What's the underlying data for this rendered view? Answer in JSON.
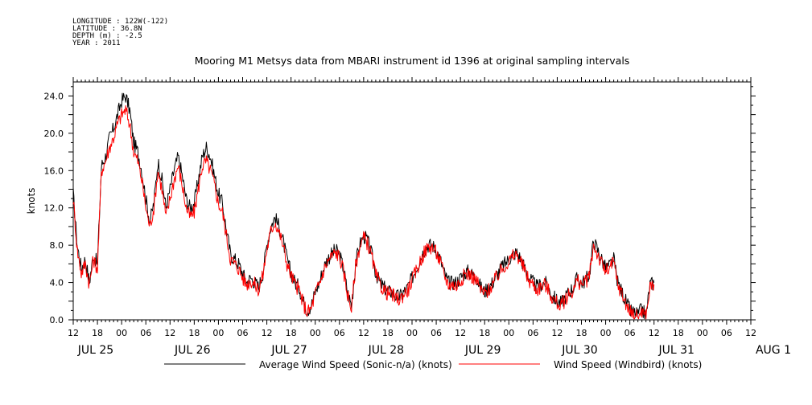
{
  "header": {
    "lines": [
      "LONGITUDE : 122W(-122)",
      "LATITUDE : 36.8N",
      "DEPTH (m) : -2.5",
      "YEAR : 2011"
    ]
  },
  "chart_data": {
    "type": "line",
    "title": "Mooring M1 Metsys data from MBARI instrument id 1396 at original sampling intervals",
    "ylabel": "knots",
    "xlabel": "",
    "ylim": [
      0,
      25.5
    ],
    "xlim_hours_from_first_tick": [
      0,
      168
    ],
    "yticks": [
      "0.0",
      "4.0",
      "8.0",
      "12.0",
      "16.0",
      "20.0",
      "24.0"
    ],
    "xtick_hours": [
      "12",
      "18",
      "00",
      "06",
      "12",
      "18",
      "00",
      "06",
      "12",
      "18",
      "00",
      "06",
      "12",
      "18",
      "00",
      "06",
      "12",
      "18",
      "00",
      "06",
      "12",
      "18",
      "00",
      "06",
      "12",
      "18",
      "00",
      "06",
      "12"
    ],
    "day_labels": [
      "JUL 25",
      "JUL 26",
      "JUL 27",
      "JUL 28",
      "JUL 29",
      "JUL 30",
      "JUL 31",
      "AUG 1"
    ],
    "legend_position": "bottom",
    "series": [
      {
        "name": "Average Wind Speed (Sonic-n/a) (knots)",
        "color": "#000000",
        "points": [
          [
            0,
            13.5
          ],
          [
            1,
            8
          ],
          [
            2,
            5.5
          ],
          [
            3,
            6.5
          ],
          [
            4,
            4
          ],
          [
            5,
            7
          ],
          [
            6,
            6
          ],
          [
            7,
            16.5
          ],
          [
            8,
            17.5
          ],
          [
            9,
            19.5
          ],
          [
            10,
            20.5
          ],
          [
            11,
            22
          ],
          [
            12,
            23.5
          ],
          [
            13,
            24
          ],
          [
            14,
            22.5
          ],
          [
            15,
            19
          ],
          [
            16,
            18
          ],
          [
            17,
            16
          ],
          [
            18,
            13
          ],
          [
            19,
            10.5
          ],
          [
            20,
            12.5
          ],
          [
            21,
            17
          ],
          [
            22,
            15
          ],
          [
            23,
            12
          ],
          [
            24,
            14
          ],
          [
            25,
            16
          ],
          [
            26,
            17.5
          ],
          [
            27,
            15.5
          ],
          [
            28,
            13
          ],
          [
            29,
            12
          ],
          [
            30,
            12.5
          ],
          [
            31,
            15
          ],
          [
            32,
            17.5
          ],
          [
            33,
            18.5
          ],
          [
            34,
            17.5
          ],
          [
            35,
            15.5
          ],
          [
            36,
            13.5
          ],
          [
            37,
            12.5
          ],
          [
            38,
            9.5
          ],
          [
            39,
            7
          ],
          [
            40,
            6.5
          ],
          [
            41,
            6
          ],
          [
            42,
            5
          ],
          [
            43,
            4
          ],
          [
            44,
            4.5
          ],
          [
            45,
            4
          ],
          [
            46,
            3.5
          ],
          [
            47,
            5
          ],
          [
            48,
            8
          ],
          [
            49,
            10
          ],
          [
            50,
            11
          ],
          [
            51,
            10
          ],
          [
            52,
            8.5
          ],
          [
            53,
            6.5
          ],
          [
            54,
            5
          ],
          [
            55,
            4
          ],
          [
            56,
            3.5
          ],
          [
            57,
            2
          ],
          [
            58,
            1
          ],
          [
            59,
            1.5
          ],
          [
            60,
            3
          ],
          [
            61,
            4
          ],
          [
            62,
            5.5
          ],
          [
            63,
            6.5
          ],
          [
            64,
            7
          ],
          [
            65,
            7.5
          ],
          [
            66,
            7
          ],
          [
            67,
            5.5
          ],
          [
            68,
            3
          ],
          [
            69,
            1.5
          ],
          [
            70,
            6
          ],
          [
            71,
            8
          ],
          [
            72,
            9
          ],
          [
            73,
            8.5
          ],
          [
            74,
            7
          ],
          [
            75,
            5
          ],
          [
            76,
            4
          ],
          [
            77,
            3.5
          ],
          [
            78,
            3
          ],
          [
            79,
            3
          ],
          [
            80,
            2.5
          ],
          [
            81,
            2.5
          ],
          [
            82,
            3
          ],
          [
            83,
            3.5
          ],
          [
            84,
            4.5
          ],
          [
            85,
            5.5
          ],
          [
            86,
            6.5
          ],
          [
            87,
            7.5
          ],
          [
            88,
            8
          ],
          [
            89,
            8
          ],
          [
            90,
            7.5
          ],
          [
            91,
            6.5
          ],
          [
            92,
            5
          ],
          [
            93,
            4
          ],
          [
            94,
            4
          ],
          [
            95,
            4
          ],
          [
            96,
            4.5
          ],
          [
            97,
            5
          ],
          [
            98,
            5.2
          ],
          [
            99,
            4.8
          ],
          [
            100,
            4.5
          ],
          [
            101,
            3.5
          ],
          [
            102,
            3
          ],
          [
            103,
            3.5
          ],
          [
            104,
            4
          ],
          [
            105,
            4.8
          ],
          [
            106,
            5.5
          ],
          [
            107,
            6
          ],
          [
            108,
            6.5
          ],
          [
            109,
            7
          ],
          [
            110,
            7.2
          ],
          [
            111,
            6.5
          ],
          [
            112,
            5.5
          ],
          [
            113,
            4.5
          ],
          [
            114,
            4
          ],
          [
            115,
            3.5
          ],
          [
            116,
            3.8
          ],
          [
            117,
            4
          ],
          [
            118,
            3.2
          ],
          [
            119,
            2.5
          ],
          [
            120,
            2
          ],
          [
            121,
            1.8
          ],
          [
            122,
            2.5
          ],
          [
            123,
            3
          ],
          [
            124,
            3.5
          ],
          [
            125,
            4.5
          ],
          [
            126,
            4
          ],
          [
            127,
            4.2
          ],
          [
            128,
            5
          ],
          [
            129,
            8.5
          ],
          [
            130,
            7.5
          ],
          [
            131,
            6.5
          ],
          [
            132,
            5.5
          ],
          [
            133,
            5.8
          ],
          [
            134,
            6.5
          ],
          [
            135,
            4
          ],
          [
            136,
            3
          ],
          [
            137,
            2
          ],
          [
            138,
            1
          ],
          [
            139,
            0.8
          ],
          [
            140,
            0.5
          ],
          [
            141,
            1.2
          ],
          [
            142,
            0.4
          ],
          [
            143,
            3.8
          ],
          [
            144,
            4
          ]
        ]
      },
      {
        "name": "Wind Speed (Windbird) (knots)",
        "color": "#ff0000",
        "points": [
          [
            0,
            13
          ],
          [
            1,
            7.5
          ],
          [
            2,
            5
          ],
          [
            3,
            6
          ],
          [
            4,
            3.8
          ],
          [
            5,
            6.5
          ],
          [
            6,
            5.5
          ],
          [
            7,
            16
          ],
          [
            8,
            17
          ],
          [
            9,
            18.5
          ],
          [
            10,
            19.5
          ],
          [
            11,
            21
          ],
          [
            12,
            22
          ],
          [
            13,
            22.5
          ],
          [
            14,
            21
          ],
          [
            15,
            18
          ],
          [
            16,
            17
          ],
          [
            17,
            15
          ],
          [
            18,
            12
          ],
          [
            19,
            10
          ],
          [
            20,
            12
          ],
          [
            21,
            16
          ],
          [
            22,
            14
          ],
          [
            23,
            11
          ],
          [
            24,
            13
          ],
          [
            25,
            15
          ],
          [
            26,
            16.5
          ],
          [
            27,
            14.5
          ],
          [
            28,
            12
          ],
          [
            29,
            11
          ],
          [
            30,
            11.5
          ],
          [
            31,
            14
          ],
          [
            32,
            16.5
          ],
          [
            33,
            17
          ],
          [
            34,
            16
          ],
          [
            35,
            14.5
          ],
          [
            36,
            12.5
          ],
          [
            37,
            11.5
          ],
          [
            38,
            9
          ],
          [
            39,
            6.5
          ],
          [
            40,
            6
          ],
          [
            41,
            5.5
          ],
          [
            42,
            4.5
          ],
          [
            43,
            3.8
          ],
          [
            44,
            4.2
          ],
          [
            45,
            3.8
          ],
          [
            46,
            3.2
          ],
          [
            47,
            4.8
          ],
          [
            48,
            7.5
          ],
          [
            49,
            9.5
          ],
          [
            50,
            10.5
          ],
          [
            51,
            9.5
          ],
          [
            52,
            8
          ],
          [
            53,
            6
          ],
          [
            54,
            4.8
          ],
          [
            55,
            3.8
          ],
          [
            56,
            3.2
          ],
          [
            57,
            1.8
          ],
          [
            58,
            0.8
          ],
          [
            59,
            1.2
          ],
          [
            60,
            2.8
          ],
          [
            61,
            3.8
          ],
          [
            62,
            5.2
          ],
          [
            63,
            6.2
          ],
          [
            64,
            6.8
          ],
          [
            65,
            7.2
          ],
          [
            66,
            6.8
          ],
          [
            67,
            5.2
          ],
          [
            68,
            2.8
          ],
          [
            69,
            1.2
          ],
          [
            70,
            5.8
          ],
          [
            71,
            7.8
          ],
          [
            72,
            8.8
          ],
          [
            73,
            8.2
          ],
          [
            74,
            6.8
          ],
          [
            75,
            4.8
          ],
          [
            76,
            3.8
          ],
          [
            77,
            3.2
          ],
          [
            78,
            2.8
          ],
          [
            79,
            2.8
          ],
          [
            80,
            2.2
          ],
          [
            81,
            2.2
          ],
          [
            82,
            2.8
          ],
          [
            83,
            3.2
          ],
          [
            84,
            4.2
          ],
          [
            85,
            5.2
          ],
          [
            86,
            6.2
          ],
          [
            87,
            7.2
          ],
          [
            88,
            7.8
          ],
          [
            89,
            7.8
          ],
          [
            90,
            7.2
          ],
          [
            91,
            6.2
          ],
          [
            92,
            4.8
          ],
          [
            93,
            3.8
          ],
          [
            94,
            3.8
          ],
          [
            95,
            3.6
          ],
          [
            96,
            4.2
          ],
          [
            97,
            4.8
          ],
          [
            98,
            5
          ],
          [
            99,
            4.6
          ],
          [
            100,
            4.2
          ],
          [
            101,
            3.2
          ],
          [
            102,
            2.8
          ],
          [
            103,
            3.2
          ],
          [
            104,
            3.8
          ],
          [
            105,
            4.6
          ],
          [
            106,
            5.2
          ],
          [
            107,
            5.8
          ],
          [
            108,
            6.2
          ],
          [
            109,
            6.8
          ],
          [
            110,
            7
          ],
          [
            111,
            6.2
          ],
          [
            112,
            5.2
          ],
          [
            113,
            4.2
          ],
          [
            114,
            3.8
          ],
          [
            115,
            3.2
          ],
          [
            116,
            3.6
          ],
          [
            117,
            3.8
          ],
          [
            118,
            3
          ],
          [
            119,
            2.2
          ],
          [
            120,
            1.8
          ],
          [
            121,
            1.5
          ],
          [
            122,
            2.2
          ],
          [
            123,
            2.8
          ],
          [
            124,
            3.2
          ],
          [
            125,
            4.2
          ],
          [
            126,
            3.8
          ],
          [
            127,
            4
          ],
          [
            128,
            4.8
          ],
          [
            129,
            8
          ],
          [
            130,
            7
          ],
          [
            131,
            6
          ],
          [
            132,
            5.2
          ],
          [
            133,
            5.5
          ],
          [
            134,
            6.2
          ],
          [
            135,
            3.8
          ],
          [
            136,
            2.8
          ],
          [
            137,
            1.8
          ],
          [
            138,
            0.8
          ],
          [
            139,
            0.6
          ],
          [
            140,
            0.3
          ],
          [
            141,
            1
          ],
          [
            142,
            0.3
          ],
          [
            143,
            3.5
          ],
          [
            144,
            3.8
          ]
        ]
      }
    ]
  }
}
